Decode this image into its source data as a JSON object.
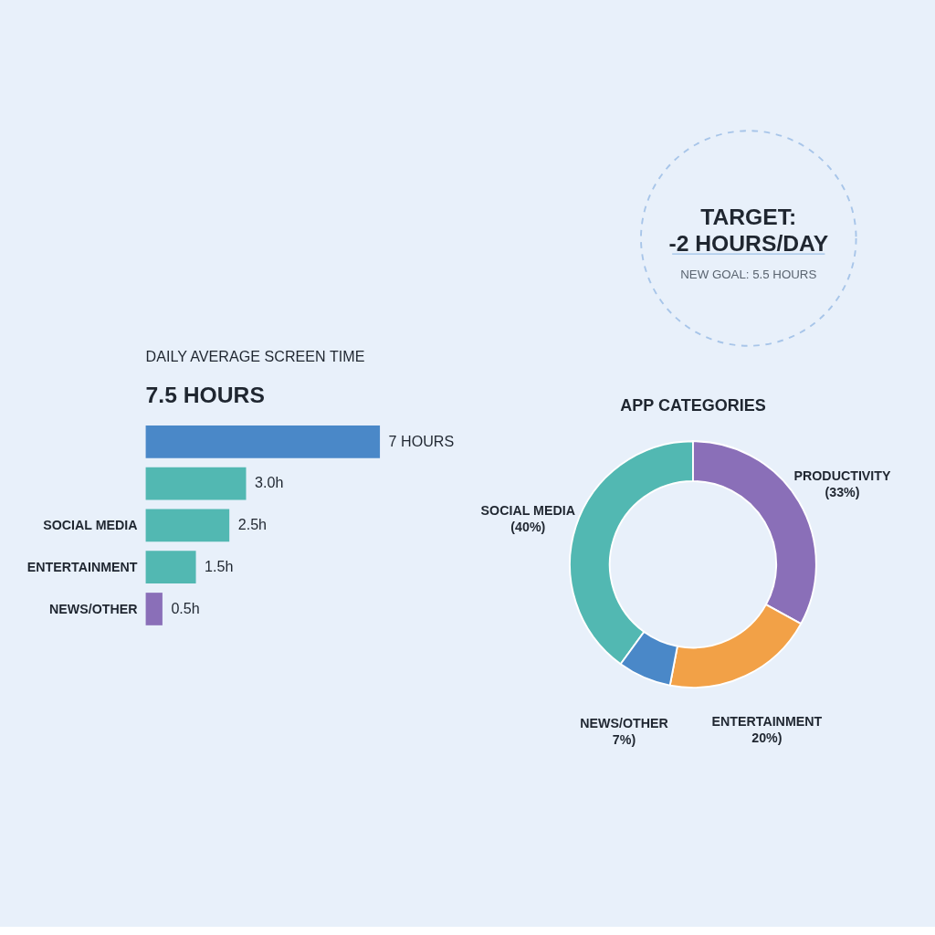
{
  "chart_data": [
    {
      "type": "other",
      "title": "TARGET:\n-2 HOURS/DAY",
      "subtitle": "NEW GOAL: 5.5 HOURS"
    },
    {
      "type": "bar",
      "orientation": "horizontal",
      "title": "DAILY AVERAGE SCREEN TIME",
      "subtitle": "7.5 HOURS",
      "categories": [
        null,
        null,
        "SOCIAL MEDIA",
        "ENTERTAINMENT",
        "NEWS/OTHER"
      ],
      "values": [
        7,
        3.0,
        2.5,
        1.5,
        0.5
      ],
      "value_labels": [
        "7 HOURS",
        "3.0h",
        "2.5h",
        "1.5h",
        "0.5h"
      ],
      "colors": [
        "#4a88c8",
        "#52b8b2",
        "#52b8b2",
        "#52b8b2",
        "#8a6fb8"
      ],
      "tick_labels": "y"
    },
    {
      "type": "donut",
      "title": "APP CATEGORIES",
      "categories": [
        "SOCIAL MEDIA",
        "PRODUCTIVITY",
        "ENTERTAINMENT",
        "NEWS/OTHER"
      ],
      "values": [
        40,
        33,
        20,
        7
      ],
      "value_labels": [
        "(40%)",
        "(33%)",
        "20%)",
        "7%)"
      ],
      "colors": [
        "#52b8b2",
        "#8a6fb8",
        "#f2a147",
        "#4a88c8"
      ]
    }
  ]
}
